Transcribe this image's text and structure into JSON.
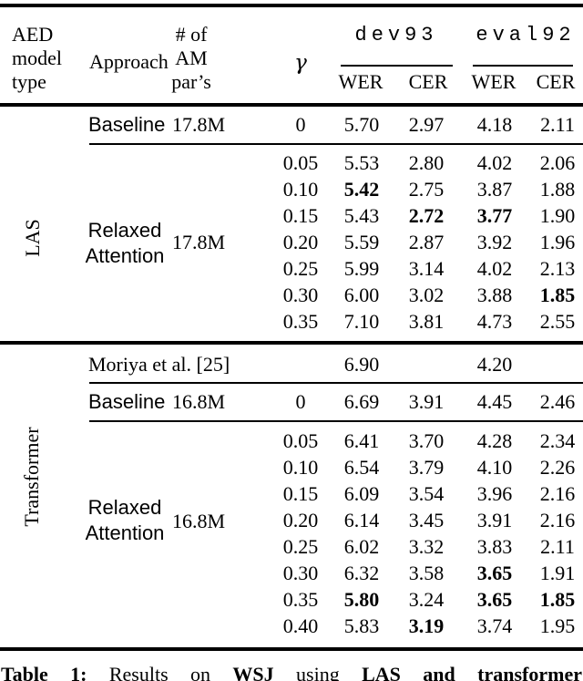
{
  "colors": {
    "text": "#000000",
    "background": "#ffffff",
    "rule": "#000000"
  },
  "header": {
    "model_type": "AED\nmodel\ntype",
    "approach": "Approach",
    "params": "# of\nAM\npar’s",
    "gamma": "γ",
    "groups": [
      {
        "label": "dev93",
        "sub": [
          "WER",
          "CER"
        ]
      },
      {
        "label": "eval92",
        "sub": [
          "WER",
          "CER"
        ]
      }
    ]
  },
  "table": {
    "sections": [
      {
        "model_label": "LAS",
        "baseline": {
          "approach": "Baseline",
          "params": "17.8M",
          "gamma": "0",
          "values": [
            "5.70",
            "2.97",
            "4.18",
            "2.11"
          ],
          "bold": [
            false,
            false,
            false,
            false
          ]
        },
        "relaxed": {
          "approach": "Relaxed\nAttention",
          "params": "17.8M",
          "rows": [
            {
              "gamma": "0.05",
              "values": [
                "5.53",
                "2.80",
                "4.02",
                "2.06"
              ],
              "bold": [
                false,
                false,
                false,
                false
              ]
            },
            {
              "gamma": "0.10",
              "values": [
                "5.42",
                "2.75",
                "3.87",
                "1.88"
              ],
              "bold": [
                true,
                false,
                false,
                false
              ]
            },
            {
              "gamma": "0.15",
              "values": [
                "5.43",
                "2.72",
                "3.77",
                "1.90"
              ],
              "bold": [
                false,
                true,
                true,
                false
              ]
            },
            {
              "gamma": "0.20",
              "values": [
                "5.59",
                "2.87",
                "3.92",
                "1.96"
              ],
              "bold": [
                false,
                false,
                false,
                false
              ]
            },
            {
              "gamma": "0.25",
              "values": [
                "5.99",
                "3.14",
                "4.02",
                "2.13"
              ],
              "bold": [
                false,
                false,
                false,
                false
              ]
            },
            {
              "gamma": "0.30",
              "values": [
                "6.00",
                "3.02",
                "3.88",
                "1.85"
              ],
              "bold": [
                false,
                false,
                false,
                true
              ]
            },
            {
              "gamma": "0.35",
              "values": [
                "7.10",
                "3.81",
                "4.73",
                "2.55"
              ],
              "bold": [
                false,
                false,
                false,
                false
              ]
            }
          ]
        }
      },
      {
        "model_label": "Transformer",
        "reference_row": {
          "label": "Moriya et al. [25]",
          "wer_dev": "6.90",
          "wer_eval": "4.20"
        },
        "baseline": {
          "approach": "Baseline",
          "params": "16.8M",
          "gamma": "0",
          "values": [
            "6.69",
            "3.91",
            "4.45",
            "2.46"
          ],
          "bold": [
            false,
            false,
            false,
            false
          ]
        },
        "relaxed": {
          "approach": "Relaxed\nAttention",
          "params": "16.8M",
          "rows": [
            {
              "gamma": "0.05",
              "values": [
                "6.41",
                "3.70",
                "4.28",
                "2.34"
              ],
              "bold": [
                false,
                false,
                false,
                false
              ]
            },
            {
              "gamma": "0.10",
              "values": [
                "6.54",
                "3.79",
                "4.10",
                "2.26"
              ],
              "bold": [
                false,
                false,
                false,
                false
              ]
            },
            {
              "gamma": "0.15",
              "values": [
                "6.09",
                "3.54",
                "3.96",
                "2.16"
              ],
              "bold": [
                false,
                false,
                false,
                false
              ]
            },
            {
              "gamma": "0.20",
              "values": [
                "6.14",
                "3.45",
                "3.91",
                "2.16"
              ],
              "bold": [
                false,
                false,
                false,
                false
              ]
            },
            {
              "gamma": "0.25",
              "values": [
                "6.02",
                "3.32",
                "3.83",
                "2.11"
              ],
              "bold": [
                false,
                false,
                false,
                false
              ]
            },
            {
              "gamma": "0.30",
              "values": [
                "6.32",
                "3.58",
                "3.65",
                "1.91"
              ],
              "bold": [
                false,
                false,
                true,
                false
              ]
            },
            {
              "gamma": "0.35",
              "values": [
                "5.80",
                "3.24",
                "3.65",
                "1.85"
              ],
              "bold": [
                true,
                false,
                true,
                true
              ]
            },
            {
              "gamma": "0.40",
              "values": [
                "5.83",
                "3.19",
                "3.74",
                "1.95"
              ],
              "bold": [
                false,
                true,
                false,
                false
              ]
            }
          ]
        }
      }
    ]
  },
  "caption": {
    "segments": [
      {
        "text": "Table 1:",
        "bold": true
      },
      {
        "text": " Results on ",
        "bold": false
      },
      {
        "text": "WSJ",
        "bold": true
      },
      {
        "text": " using ",
        "bold": false
      },
      {
        "text": "LAS and transformer",
        "bold": true
      }
    ]
  }
}
